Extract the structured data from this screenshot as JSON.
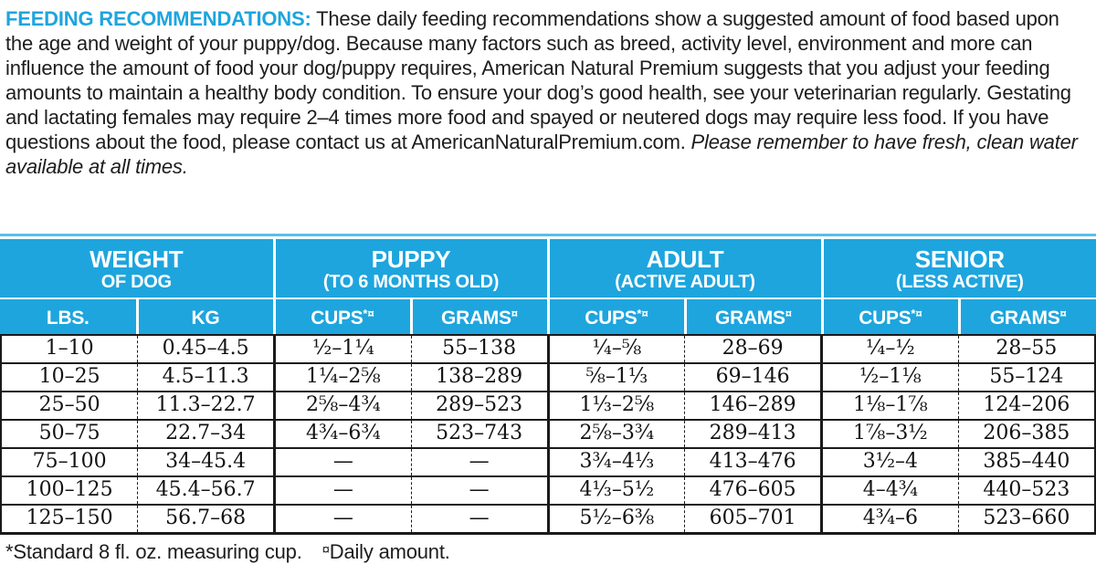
{
  "colors": {
    "brand_blue": "#1ea5de",
    "border_black": "#1a1a1a",
    "header_text": "#ffffff"
  },
  "intro": {
    "heading": "FEEDING RECOMMENDATIONS:",
    "body": " These daily feeding recommendations show a suggested amount of food based upon the age and weight of your puppy/dog. Because many factors such as breed, activity level, environment and more can influence the amount of food your dog/puppy requires, American Natural Premium suggests that you adjust your feeding amounts to maintain a healthy body condition. To ensure your dog’s good health, see your veterinarian regularly. Gestating and lactating females may require 2–4 times more food and spayed or neutered dogs may require less food. If you have questions about the food, please contact us at AmericanNaturalPremium.com. ",
    "italic": "Please remember to have fresh, clean water available at all times."
  },
  "table": {
    "groups": [
      {
        "title": "WEIGHT",
        "subtitle": "OF DOG"
      },
      {
        "title": "PUPPY",
        "subtitle": "(TO 6 MONTHS OLD)"
      },
      {
        "title": "ADULT",
        "subtitle": "(ACTIVE ADULT)"
      },
      {
        "title": "SENIOR",
        "subtitle": "(LESS ACTIVE)"
      }
    ],
    "columns": [
      {
        "label": "LBS.",
        "sup": ""
      },
      {
        "label": "KG",
        "sup": ""
      },
      {
        "label": "CUPS",
        "sup": "*¤"
      },
      {
        "label": "GRAMS",
        "sup": "¤"
      },
      {
        "label": "CUPS",
        "sup": "*¤"
      },
      {
        "label": "GRAMS",
        "sup": "¤"
      },
      {
        "label": "CUPS",
        "sup": "*¤"
      },
      {
        "label": "GRAMS",
        "sup": "¤"
      }
    ],
    "rows": [
      [
        "1–10",
        "0.45–4.5",
        "½–1¼",
        "55–138",
        "¼–⅝",
        "28–69",
        "¼–½",
        "28–55"
      ],
      [
        "10–25",
        "4.5–11.3",
        "1¼–2⅝",
        "138–289",
        "⅝–1⅓",
        "69–146",
        "½–1⅛",
        "55–124"
      ],
      [
        "25–50",
        "11.3–22.7",
        "2⅝–4¾",
        "289–523",
        "1⅓–2⅝",
        "146–289",
        "1⅛–1⅞",
        "124–206"
      ],
      [
        "50–75",
        "22.7–34",
        "4¾–6¾",
        "523–743",
        "2⅝–3¾",
        "289–413",
        "1⅞–3½",
        "206–385"
      ],
      [
        "75–100",
        "34–45.4",
        "—",
        "—",
        "3¾–4⅓",
        "413–476",
        "3½–4",
        "385–440"
      ],
      [
        "100–125",
        "45.4–56.7",
        "—",
        "—",
        "4⅓–5½",
        "476–605",
        "4–4¾",
        "440–523"
      ],
      [
        "125–150",
        "56.7–68",
        "—",
        "—",
        "5½–6⅜",
        "605–701",
        "4¾–6",
        "523–660"
      ]
    ]
  },
  "footnotes": {
    "cup_note": "*Standard 8 fl. oz. measuring cup.",
    "daily_marker": "¤",
    "daily_note": "Daily amount."
  }
}
